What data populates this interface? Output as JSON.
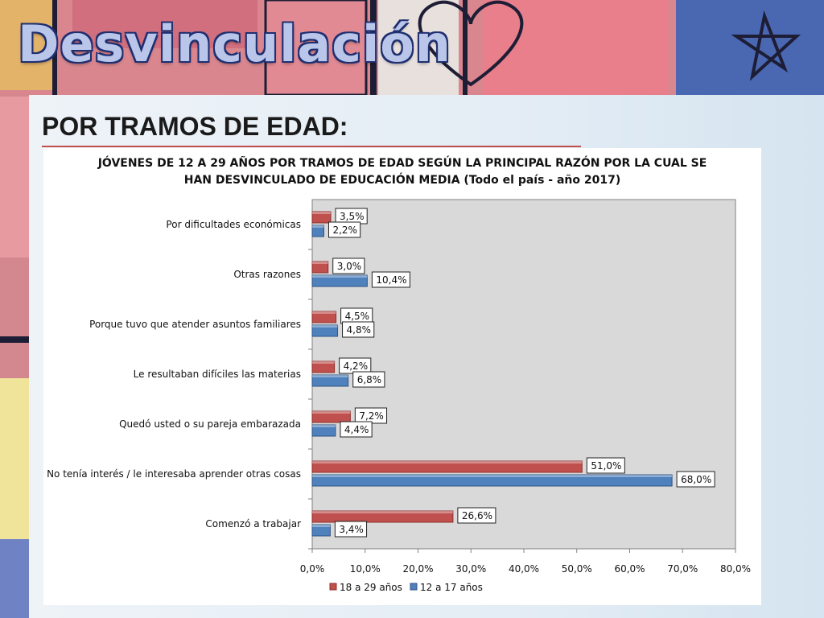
{
  "slide": {
    "title": "Desvinculación",
    "subtitle": "POR TRAMOS DE EDAD:"
  },
  "colors": {
    "series_18_29": "#c0504d",
    "series_12_17": "#4f81bd",
    "plot_bg": "#d9d9d9",
    "title_fill": "#b9c6ea",
    "title_outline": "#1f2f70"
  },
  "chart_data": {
    "type": "bar",
    "orientation": "horizontal",
    "title_line1": "JÓVENES DE 12 A 29 AÑOS POR TRAMOS DE EDAD SEGÚN LA  PRINCIPAL RAZÓN POR LA CUAL SE",
    "title_line2": "HAN DESVINCULADO DE EDUCACIÓN MEDIA (Todo el país - año 2017)",
    "categories": [
      "Por dificultades económicas",
      "Otras razones",
      "Porque tuvo que atender asuntos familiares",
      "Le resultaban difíciles las materias",
      "Quedó usted o su pareja embarazada",
      "No tenía interés / le interesaba aprender otras cosas",
      "Comenzó a trabajar"
    ],
    "series": [
      {
        "name": "18 a 29 años",
        "values": [
          3.5,
          3.0,
          4.5,
          4.2,
          7.2,
          51.0,
          26.6
        ],
        "labels": [
          "3,5%",
          "3,0%",
          "4,5%",
          "4,2%",
          "7,2%",
          "51,0%",
          "26,6%"
        ]
      },
      {
        "name": "12 a 17 años",
        "values": [
          2.2,
          10.4,
          4.8,
          6.8,
          4.4,
          68.0,
          3.4
        ],
        "labels": [
          "2,2%",
          "10,4%",
          "4,8%",
          "6,8%",
          "4,4%",
          "68,0%",
          "3,4%"
        ]
      }
    ],
    "xlim": [
      0,
      80
    ],
    "xticks": [
      0,
      10,
      20,
      30,
      40,
      50,
      60,
      70,
      80
    ],
    "xtick_labels": [
      "0,0%",
      "10,0%",
      "20,0%",
      "30,0%",
      "40,0%",
      "50,0%",
      "60,0%",
      "70,0%",
      "80,0%"
    ],
    "grid": false,
    "legend_position": "bottom"
  }
}
